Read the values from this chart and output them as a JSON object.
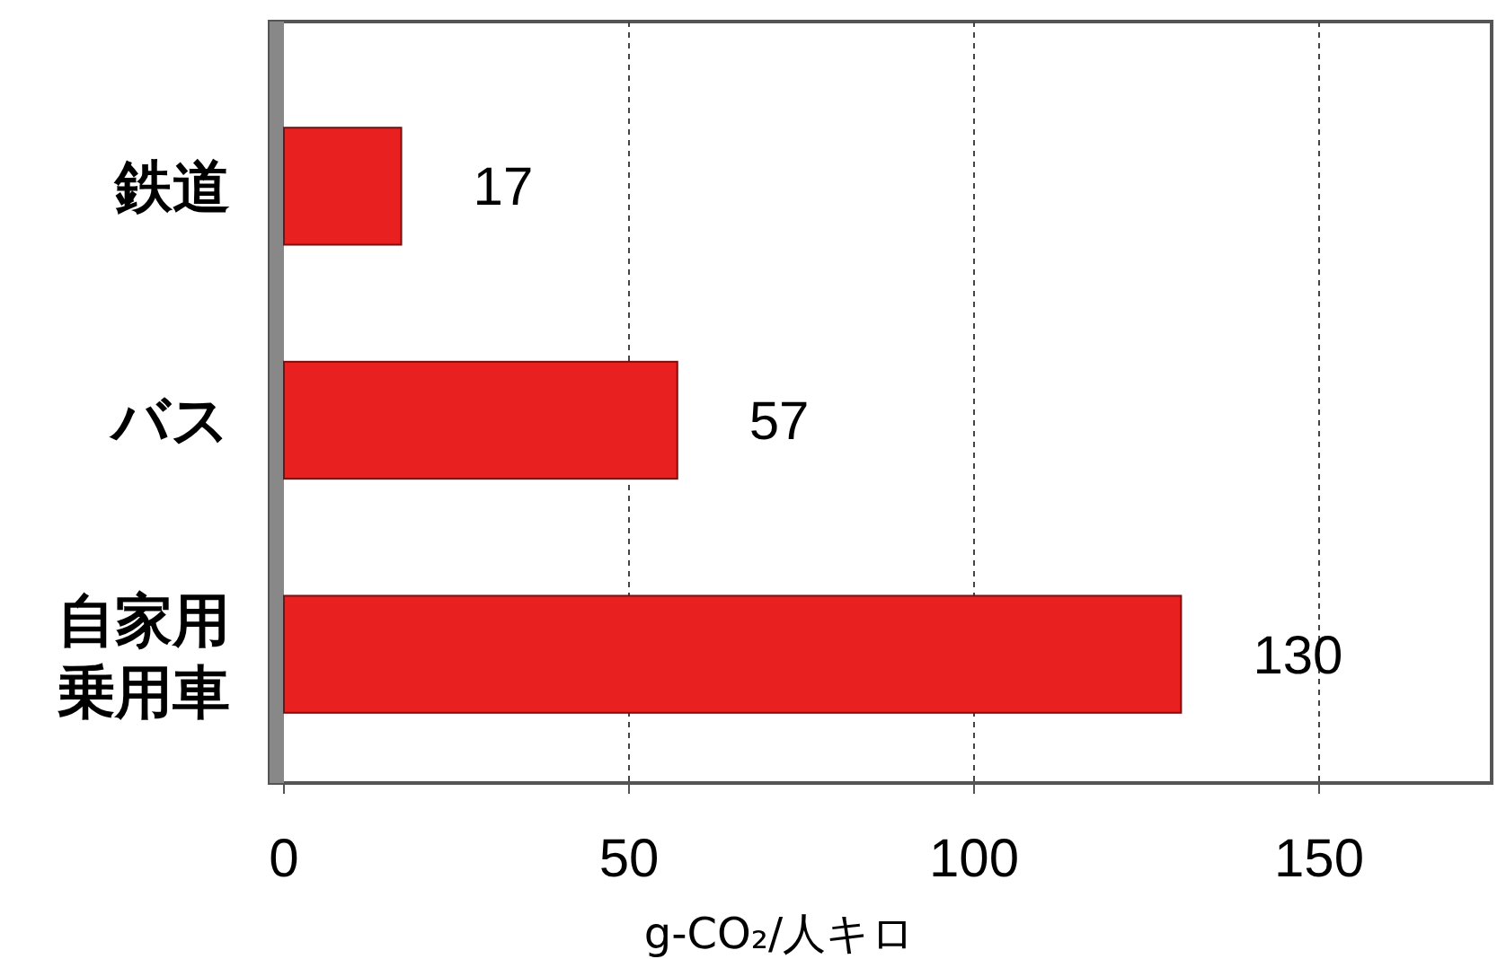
{
  "chart_data": {
    "type": "bar",
    "orientation": "horizontal",
    "categories": [
      "鉄道",
      "バス",
      "自家用乗用車"
    ],
    "values": [
      17,
      57,
      130
    ],
    "color": "#e8201f",
    "xlim": [
      0,
      175
    ],
    "xticks": [
      0,
      50,
      100,
      150
    ],
    "xlabel": "g-CO₂/人キロ",
    "grid": "x",
    "data_labels": true
  }
}
